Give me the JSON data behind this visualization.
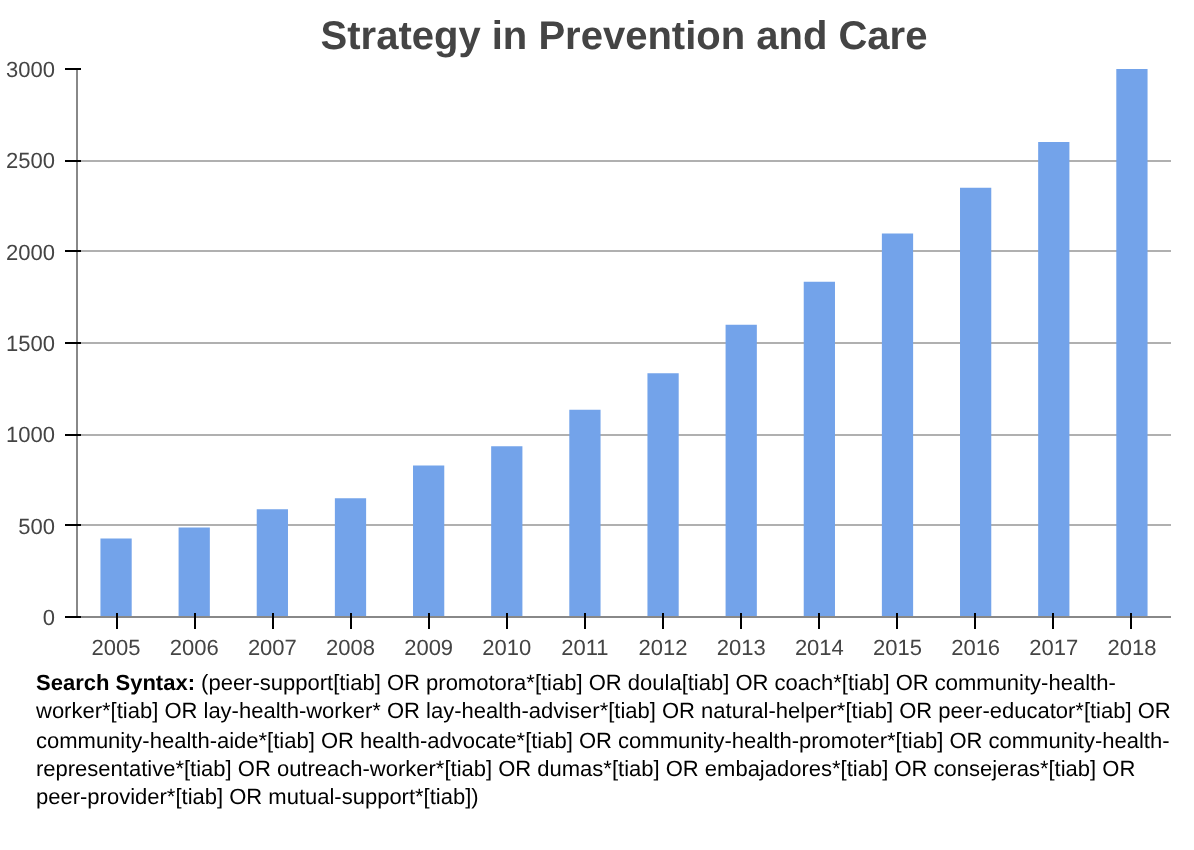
{
  "chart_data": {
    "type": "bar",
    "title": "Strategy in Prevention and Care",
    "categories": [
      "2005",
      "2006",
      "2007",
      "2008",
      "2009",
      "2010",
      "2011",
      "2012",
      "2013",
      "2014",
      "2015",
      "2016",
      "2017",
      "2018"
    ],
    "values": [
      430,
      490,
      590,
      650,
      830,
      935,
      1135,
      1335,
      1600,
      1835,
      2100,
      2350,
      2600,
      3000
    ],
    "color": "#73a3ea",
    "ylim": [
      0,
      3000
    ],
    "yticks": [
      0,
      500,
      1000,
      1500,
      2000,
      2500,
      3000
    ],
    "grid": "y",
    "annotations": [
      "Search Syntax: (peer-support[tiab] OR promotora*[tiab] OR doula[tiab] OR coach*[tiab] OR community-health-worker*[tiab] OR lay-health-worker* OR lay-health-adviser*[tiab] OR natural-helper*[tiab] OR peer-educator*[tiab] OR community-health-aide*[tiab] OR health-advocate*[tiab] OR community-health-promoter*[tiab] OR community-health-representative*[tiab] OR outreach-worker*[tiab] OR dumas*[tiab] OR embajadores*[tiab] OR consejeras*[tiab] OR peer-provider*[tiab] OR mutual-support*[tiab])"
    ]
  }
}
